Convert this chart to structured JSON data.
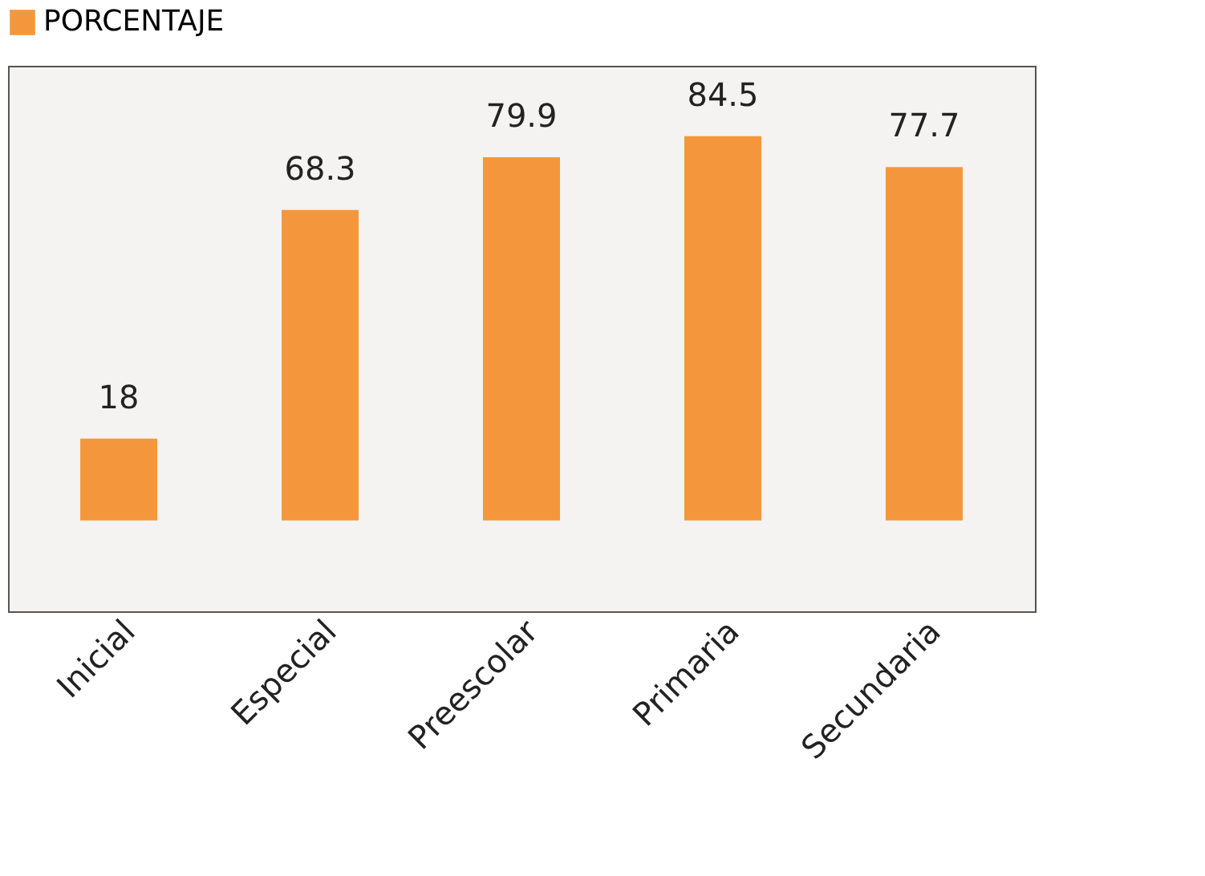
{
  "chart_data": {
    "type": "bar",
    "categories": [
      "Inicial",
      "Especial",
      "Preescolar",
      "Primaria",
      "Secundaria"
    ],
    "series": [
      {
        "name": "PORCENTAJE",
        "color": "#f4973c",
        "values": [
          18,
          68.3,
          79.9,
          84.5,
          77.7
        ]
      }
    ],
    "data_labels": true,
    "legend": "top",
    "grid": false
  }
}
